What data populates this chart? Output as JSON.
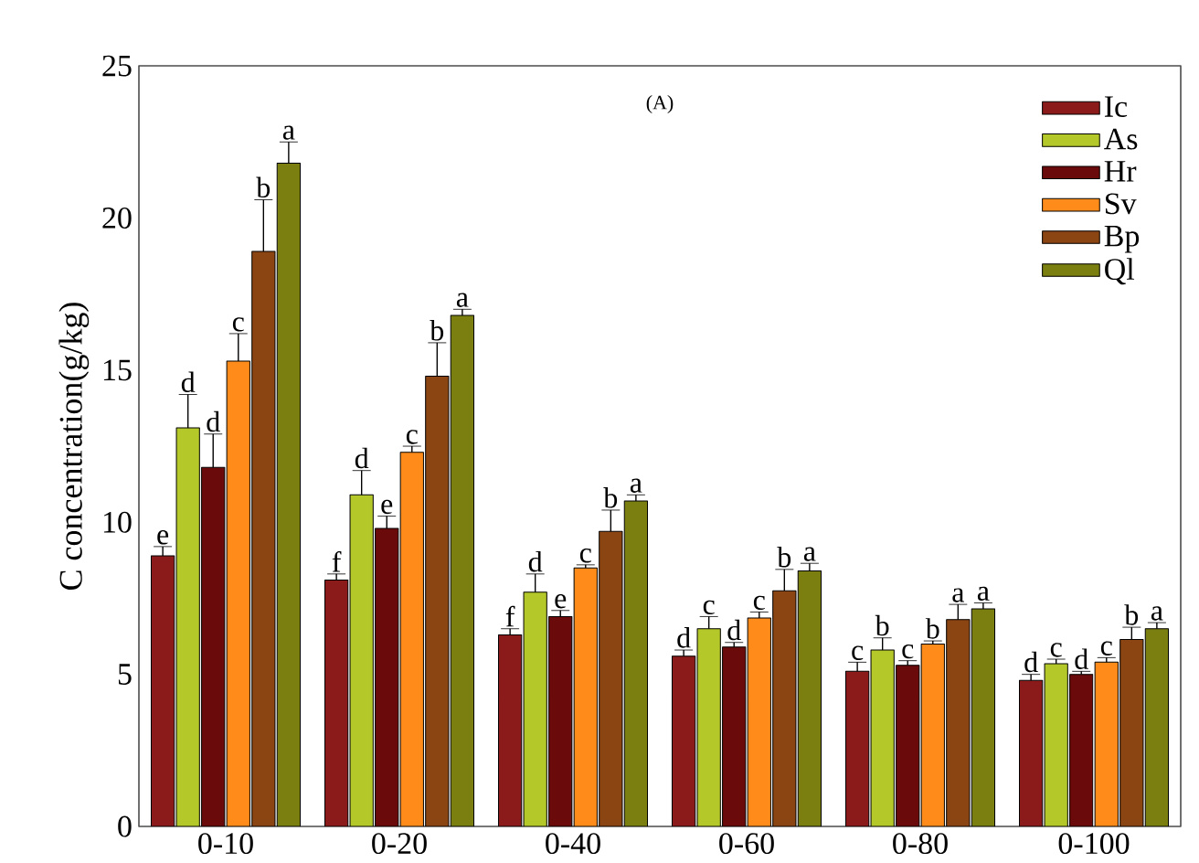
{
  "chart_data": {
    "type": "bar",
    "ylabel": "C concentration(g/kg)",
    "annotations": [
      "(A)"
    ],
    "categories": [
      "0-10",
      "0-20",
      "0-40",
      "0-60",
      "0-80",
      "0-100"
    ],
    "series": [
      {
        "name": "Ic",
        "color": "#8b1a1a",
        "values": [
          8.9,
          8.1,
          6.3,
          5.6,
          5.1,
          4.8
        ],
        "errors": [
          0.3,
          0.2,
          0.2,
          0.2,
          0.3,
          0.2
        ],
        "value_labels": [
          "e",
          "f",
          "f",
          "d",
          "c",
          "d"
        ]
      },
      {
        "name": "As",
        "color": "#b5c82a",
        "values": [
          13.1,
          10.9,
          7.7,
          6.5,
          5.8,
          5.35
        ],
        "errors": [
          1.1,
          0.8,
          0.6,
          0.4,
          0.4,
          0.15
        ],
        "value_labels": [
          "d",
          "d",
          "d",
          "c",
          "b",
          "c"
        ]
      },
      {
        "name": "Hr",
        "color": "#6b0a0a",
        "values": [
          11.8,
          9.8,
          6.9,
          5.9,
          5.3,
          5.0
        ],
        "errors": [
          1.1,
          0.4,
          0.2,
          0.15,
          0.15,
          0.1
        ],
        "value_labels": [
          "d",
          "e",
          "e",
          "d",
          "c",
          "d"
        ]
      },
      {
        "name": "Sv",
        "color": "#ff8c1a",
        "values": [
          15.3,
          12.3,
          8.5,
          6.85,
          6.0,
          5.4
        ],
        "errors": [
          0.9,
          0.2,
          0.1,
          0.2,
          0.1,
          0.15
        ],
        "value_labels": [
          "c",
          "c",
          "c",
          "c",
          "b",
          "c"
        ]
      },
      {
        "name": "Bp",
        "color": "#8b4513",
        "values": [
          18.9,
          14.8,
          9.7,
          7.75,
          6.8,
          6.15
        ],
        "errors": [
          1.7,
          1.1,
          0.7,
          0.7,
          0.5,
          0.4
        ],
        "value_labels": [
          "b",
          "b",
          "b",
          "b",
          "a",
          "b"
        ]
      },
      {
        "name": "Ql",
        "color": "#7a7f10",
        "values": [
          21.8,
          16.8,
          10.7,
          8.4,
          7.15,
          6.5
        ],
        "errors": [
          0.7,
          0.2,
          0.2,
          0.25,
          0.2,
          0.2
        ],
        "value_labels": [
          "a",
          "a",
          "a",
          "a",
          "a",
          "a"
        ]
      }
    ],
    "ylim": [
      0,
      25
    ],
    "yticks": [
      0,
      5,
      10,
      15,
      20,
      25
    ],
    "grid": false,
    "legend": "top right"
  }
}
